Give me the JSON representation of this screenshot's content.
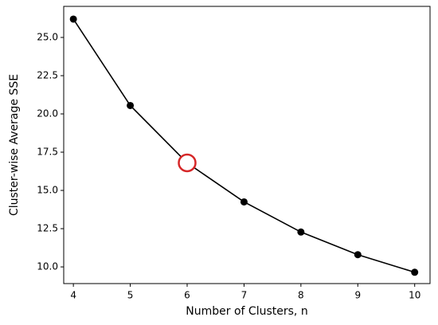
{
  "chart_data": {
    "type": "line",
    "x_label": "Number of Clusters, n",
    "y_label": "Cluster-wise Average SSE",
    "x": [
      4,
      5,
      6,
      7,
      8,
      9,
      10
    ],
    "series": [
      {
        "color": "#000000",
        "values": [
          26.2,
          20.55,
          16.8,
          14.25,
          12.28,
          10.8,
          9.65
        ]
      }
    ],
    "highlight": {
      "x": 6,
      "y": 16.8,
      "color": "#d62728"
    },
    "xlim": [
      3.83,
      10.27
    ],
    "ylim": [
      8.91,
      27.03
    ],
    "xticks": [
      4,
      5,
      6,
      7,
      8,
      9,
      10
    ],
    "yticks": [
      {
        "value": 10,
        "label": "10.0"
      },
      {
        "value": 12.5,
        "label": "12.5"
      },
      {
        "value": 15,
        "label": "15.0"
      },
      {
        "value": 17.5,
        "label": "17.5"
      },
      {
        "value": 20,
        "label": "20.0"
      },
      {
        "value": 22.5,
        "label": "22.5"
      },
      {
        "value": 25,
        "label": "25.0"
      }
    ],
    "grid": false
  }
}
